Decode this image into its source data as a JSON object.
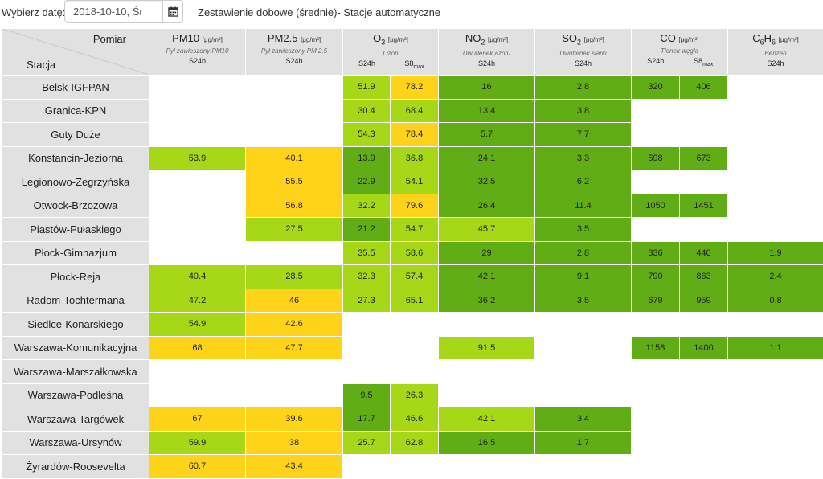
{
  "top": {
    "date_label": "Wybierz datę:",
    "date_value": "2018-10-10, Śr",
    "calendar_icon": "calendar-icon",
    "title": "Zestawienie dobowe (średnie)- Stacje automatyczne"
  },
  "header": {
    "pomiar": "Pomiar",
    "stacja": "Stacja",
    "pm10": {
      "name": "PM10",
      "unit": "[μg/m³]",
      "desc": "Pył zawieszony PM10",
      "avg": "S24h"
    },
    "pm25": {
      "name": "PM2.5",
      "unit": "[μg/m³]",
      "desc": "Pył zawieszony PM 2.5",
      "avg": "S24h"
    },
    "o3": {
      "name": "O",
      "sub": "3",
      "unit": "[μg/m³]",
      "desc": "Ozon",
      "avg": "S24h",
      "s8": "S8",
      "s8sub": "max"
    },
    "no2": {
      "name": "NO",
      "sub": "2",
      "unit": "[μg/m³]",
      "desc": "Dwutlenek azotu",
      "avg": "S24h"
    },
    "so2": {
      "name": "SO",
      "sub": "2",
      "unit": "[μg/m³]",
      "desc": "Dwutlenek siarki",
      "avg": "S24h"
    },
    "co": {
      "name": "CO",
      "unit": "[μg/m³]",
      "desc": "Tlenek węgla",
      "avg": "S24h",
      "s8": "S8",
      "s8sub": "max"
    },
    "c6h6": {
      "name": "C",
      "sub1": "6",
      "mid": "H",
      "sub2": "6",
      "unit": "[μg/m³]",
      "desc": "Benzen",
      "avg": "S24h"
    }
  },
  "colors": {
    "g": "#61ad16",
    "l": "#a7d817",
    "y": "#fed31a",
    "w": "#ffffff"
  },
  "rows": [
    {
      "station": "Belsk-IGFPAN",
      "cells": [
        [
          "",
          ""
        ],
        [
          "",
          ""
        ],
        [
          "51.9",
          "l"
        ],
        [
          "78.2",
          "y"
        ],
        [
          "16",
          "g"
        ],
        [
          "2.8",
          "g"
        ],
        [
          "320",
          "g"
        ],
        [
          "406",
          "g"
        ],
        [
          "",
          ""
        ]
      ]
    },
    {
      "station": "Granica-KPN",
      "cells": [
        [
          "",
          ""
        ],
        [
          "",
          ""
        ],
        [
          "30.4",
          "l"
        ],
        [
          "68.4",
          "l"
        ],
        [
          "13.4",
          "g"
        ],
        [
          "3.8",
          "g"
        ],
        [
          "",
          ""
        ],
        [
          "",
          ""
        ],
        [
          "",
          ""
        ]
      ]
    },
    {
      "station": "Guty Duże",
      "cells": [
        [
          "",
          ""
        ],
        [
          "",
          ""
        ],
        [
          "54.3",
          "l"
        ],
        [
          "78.4",
          "y"
        ],
        [
          "5.7",
          "g"
        ],
        [
          "7.7",
          "g"
        ],
        [
          "",
          ""
        ],
        [
          "",
          ""
        ],
        [
          "",
          ""
        ]
      ]
    },
    {
      "station": "Konstancin-Jeziorna",
      "cells": [
        [
          "53.9",
          "l"
        ],
        [
          "40.1",
          "y"
        ],
        [
          "13.9",
          "g"
        ],
        [
          "36.8",
          "l"
        ],
        [
          "24.1",
          "g"
        ],
        [
          "3.3",
          "g"
        ],
        [
          "598",
          "g"
        ],
        [
          "673",
          "g"
        ],
        [
          "",
          ""
        ]
      ]
    },
    {
      "station": "Legionowo-Zegrzyńska",
      "cells": [
        [
          "",
          ""
        ],
        [
          "55.5",
          "y"
        ],
        [
          "22.9",
          "g"
        ],
        [
          "54.1",
          "l"
        ],
        [
          "32.5",
          "g"
        ],
        [
          "6.2",
          "g"
        ],
        [
          "",
          ""
        ],
        [
          "",
          ""
        ],
        [
          "",
          ""
        ]
      ]
    },
    {
      "station": "Otwock-Brzozowa",
      "cells": [
        [
          "",
          ""
        ],
        [
          "56.8",
          "y"
        ],
        [
          "32.2",
          "l"
        ],
        [
          "79.6",
          "y"
        ],
        [
          "26.4",
          "g"
        ],
        [
          "11.4",
          "g"
        ],
        [
          "1050",
          "g"
        ],
        [
          "1451",
          "g"
        ],
        [
          "",
          ""
        ]
      ]
    },
    {
      "station": "Piastów-Pułaskiego",
      "cells": [
        [
          "",
          ""
        ],
        [
          "27.5",
          "l"
        ],
        [
          "21.2",
          "g"
        ],
        [
          "54.7",
          "l"
        ],
        [
          "45.7",
          "l"
        ],
        [
          "3.5",
          "g"
        ],
        [
          "",
          ""
        ],
        [
          "",
          ""
        ],
        [
          "",
          ""
        ]
      ]
    },
    {
      "station": "Płock-Gimnazjum",
      "cells": [
        [
          "",
          ""
        ],
        [
          "",
          ""
        ],
        [
          "35.5",
          "l"
        ],
        [
          "58.6",
          "l"
        ],
        [
          "29",
          "g"
        ],
        [
          "2.8",
          "g"
        ],
        [
          "336",
          "g"
        ],
        [
          "440",
          "g"
        ],
        [
          "1.9",
          "g"
        ]
      ]
    },
    {
      "station": "Płock-Reja",
      "cells": [
        [
          "40.4",
          "l"
        ],
        [
          "28.5",
          "l"
        ],
        [
          "32.3",
          "l"
        ],
        [
          "57.4",
          "l"
        ],
        [
          "42.1",
          "g"
        ],
        [
          "9.1",
          "g"
        ],
        [
          "790",
          "g"
        ],
        [
          "863",
          "g"
        ],
        [
          "2.4",
          "g"
        ]
      ]
    },
    {
      "station": "Radom-Tochtermana",
      "cells": [
        [
          "47.2",
          "l"
        ],
        [
          "46",
          "y"
        ],
        [
          "27.3",
          "l"
        ],
        [
          "65.1",
          "l"
        ],
        [
          "36.2",
          "g"
        ],
        [
          "3.5",
          "g"
        ],
        [
          "679",
          "g"
        ],
        [
          "959",
          "g"
        ],
        [
          "0.8",
          "g"
        ]
      ]
    },
    {
      "station": "Siedlce-Konarskiego",
      "cells": [
        [
          "54.9",
          "l"
        ],
        [
          "42.6",
          "y"
        ],
        [
          "",
          ""
        ],
        [
          "",
          ""
        ],
        [
          "",
          ""
        ],
        [
          "",
          ""
        ],
        [
          "",
          ""
        ],
        [
          "",
          ""
        ],
        [
          "",
          ""
        ]
      ]
    },
    {
      "station": "Warszawa-Komunikacyjna",
      "cells": [
        [
          "68",
          "y"
        ],
        [
          "47.7",
          "y"
        ],
        [
          "",
          ""
        ],
        [
          "",
          ""
        ],
        [
          "91.5",
          "l"
        ],
        [
          "",
          ""
        ],
        [
          "1158",
          "g"
        ],
        [
          "1400",
          "g"
        ],
        [
          "1.1",
          "g"
        ]
      ]
    },
    {
      "station": "Warszawa-Marszałkowska",
      "cells": [
        [
          "",
          ""
        ],
        [
          "",
          ""
        ],
        [
          "",
          ""
        ],
        [
          "",
          ""
        ],
        [
          "",
          ""
        ],
        [
          "",
          ""
        ],
        [
          "",
          ""
        ],
        [
          "",
          ""
        ],
        [
          "",
          ""
        ]
      ]
    },
    {
      "station": "Warszawa-Podleśna",
      "cells": [
        [
          "",
          ""
        ],
        [
          "",
          ""
        ],
        [
          "9.5",
          "g"
        ],
        [
          "26.3",
          "l"
        ],
        [
          "",
          ""
        ],
        [
          "",
          ""
        ],
        [
          "",
          ""
        ],
        [
          "",
          ""
        ],
        [
          "",
          ""
        ]
      ]
    },
    {
      "station": "Warszawa-Targówek",
      "cells": [
        [
          "67",
          "y"
        ],
        [
          "39.6",
          "y"
        ],
        [
          "17.7",
          "g"
        ],
        [
          "46.6",
          "l"
        ],
        [
          "42.1",
          "l"
        ],
        [
          "3.4",
          "g"
        ],
        [
          "",
          ""
        ],
        [
          "",
          ""
        ],
        [
          "",
          ""
        ]
      ]
    },
    {
      "station": "Warszawa-Ursynów",
      "cells": [
        [
          "59.9",
          "l"
        ],
        [
          "38",
          "y"
        ],
        [
          "25.7",
          "l"
        ],
        [
          "62.8",
          "l"
        ],
        [
          "16.5",
          "g"
        ],
        [
          "1.7",
          "g"
        ],
        [
          "",
          ""
        ],
        [
          "",
          ""
        ],
        [
          "",
          ""
        ]
      ]
    },
    {
      "station": "Żyrardów-Roosevelta",
      "cells": [
        [
          "60.7",
          "y"
        ],
        [
          "43.4",
          "y"
        ],
        [
          "",
          ""
        ],
        [
          "",
          ""
        ],
        [
          "",
          ""
        ],
        [
          "",
          ""
        ],
        [
          "",
          ""
        ],
        [
          "",
          ""
        ],
        [
          "",
          ""
        ]
      ]
    }
  ]
}
